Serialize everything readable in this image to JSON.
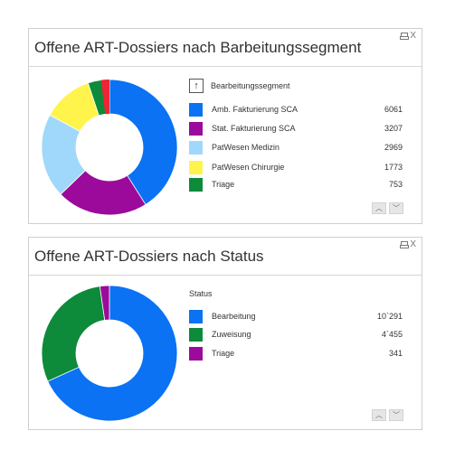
{
  "panel1": {
    "title": "Offene ART-Dossiers nach Barbeitungssegment",
    "legend_header": "Bearbeitungssegment",
    "icons": [
      "print-icon",
      "close-icon"
    ],
    "close_glyph": "X",
    "sort_glyph": "↑",
    "up_glyph": "︿",
    "down_glyph": "﹀",
    "chart_data": {
      "type": "pie",
      "categories": [
        "Amb. Fakturierung SCA",
        "Stat. Fakturierung SCA",
        "PatWesen Medizin",
        "PatWesen Chirurgie",
        "Triage"
      ],
      "values": [
        6061,
        3207,
        2969,
        1773,
        753
      ],
      "colors": [
        "#0a72f3",
        "#9b0a9b",
        "#9fd8fa",
        "#fff44c",
        "#0d8a3a"
      ]
    },
    "extra_slice_color": "#ef2435",
    "rows": [
      {
        "label": "Amb. Fakturierung SCA",
        "value": "6061",
        "color": "#0a72f3"
      },
      {
        "label": "Stat. Fakturierung SCA",
        "value": "3207",
        "color": "#9b0a9b"
      },
      {
        "label": "PatWesen Medizin",
        "value": "2969",
        "color": "#9fd8fa"
      },
      {
        "label": "PatWesen Chirurgie",
        "value": "1773",
        "color": "#fff44c"
      },
      {
        "label": "Triage",
        "value": "753",
        "color": "#0d8a3a"
      }
    ]
  },
  "panel2": {
    "title": "Offene ART-Dossiers nach Status",
    "legend_header": "Status",
    "icons": [
      "print-icon",
      "close-icon"
    ],
    "close_glyph": "X",
    "up_glyph": "︿",
    "down_glyph": "﹀",
    "chart_data": {
      "type": "pie",
      "categories": [
        "Bearbeitung",
        "Zuweisung",
        "Triage"
      ],
      "values": [
        10291,
        4455,
        341
      ],
      "colors": [
        "#0a72f3",
        "#0d8a3a",
        "#9b0a9b"
      ]
    },
    "rows": [
      {
        "label": "Bearbeitung",
        "value": "10`291",
        "color": "#0a72f3"
      },
      {
        "label": "Zuweisung",
        "value": "4`455",
        "color": "#0d8a3a"
      },
      {
        "label": "Triage",
        "value": "341",
        "color": "#9b0a9b"
      }
    ]
  }
}
